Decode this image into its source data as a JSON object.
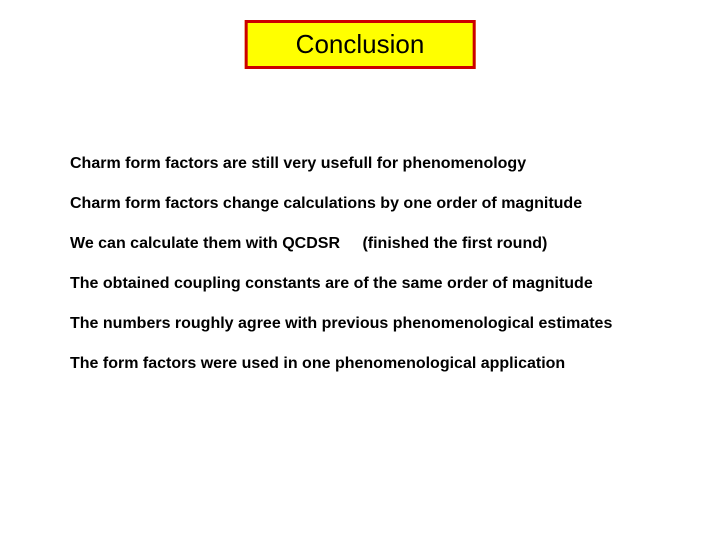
{
  "title": "Conclusion",
  "bullets": {
    "b1": "Charm form factors are  still very usefull for phenomenology",
    "b2": "Charm form factors change calculations by one order of magnitude",
    "b3_part1": "We can calculate them with QCDSR",
    "b3_part2": "(finished the first round)",
    "b4": "The obtained coupling constants are of the same order of magnitude",
    "b5": "The numbers  roughly agree with previous phenomenological estimates",
    "b6": "The form factors were used in one phenomenological application"
  },
  "colors": {
    "title_bg": "#ffff00",
    "title_border": "#cc0000",
    "text": "#000000",
    "page_bg": "#ffffff"
  },
  "typography": {
    "title_fontsize": 26,
    "body_fontsize": 16,
    "font_family": "Comic Sans MS"
  }
}
